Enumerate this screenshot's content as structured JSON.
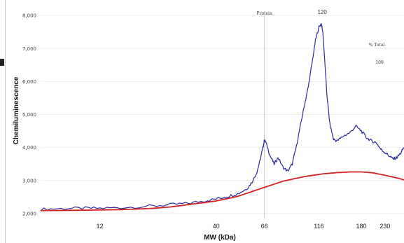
{
  "chart_data": {
    "type": "line",
    "xlabel": "MW (kDa)",
    "ylabel": "Chemiluminescence",
    "x_scale": "log",
    "xlim": [
      6.5,
      280
    ],
    "ylim": [
      1850,
      8300
    ],
    "x_ticks": [
      "12",
      "40",
      "66",
      "116",
      "180",
      "230"
    ],
    "x_tick_values": [
      12,
      40,
      66,
      116,
      180,
      230
    ],
    "y_ticks": [
      "2,000",
      "3,000",
      "4,000",
      "5,000",
      "6,000",
      "7,000",
      "8,000"
    ],
    "y_tick_values": [
      2000,
      3000,
      4000,
      5000,
      6000,
      7000,
      8000
    ],
    "annotations": [
      {
        "text": "Protein",
        "x": 66,
        "kind": "vline"
      },
      {
        "text": "120",
        "x": 120,
        "kind": "peak"
      },
      {
        "text": "% Total",
        "kind": "note"
      },
      {
        "text": "100",
        "kind": "note"
      }
    ],
    "series": [
      {
        "color": "#2a2aa0",
        "x": [
          6.5,
          8,
          10,
          12,
          15,
          20,
          25,
          30,
          35,
          40,
          45,
          50,
          55,
          58,
          61,
          63,
          65,
          66,
          67,
          70,
          73,
          76,
          80,
          84,
          88,
          92,
          96,
          100,
          104,
          108,
          112,
          116,
          119,
          121,
          123,
          126,
          130,
          135,
          140,
          150,
          160,
          170,
          180,
          190,
          200,
          210,
          220,
          230,
          240,
          250,
          260,
          270,
          280
        ],
        "y": [
          2130,
          2150,
          2160,
          2160,
          2180,
          2220,
          2270,
          2310,
          2380,
          2440,
          2520,
          2600,
          2750,
          2950,
          3250,
          3600,
          4000,
          4230,
          4150,
          3750,
          3500,
          3700,
          3400,
          3280,
          3500,
          4050,
          4700,
          5300,
          5850,
          6550,
          7250,
          7650,
          7750,
          7450,
          6700,
          5600,
          4700,
          4250,
          4200,
          4350,
          4450,
          4650,
          4500,
          4300,
          4200,
          4150,
          3950,
          3850,
          3750,
          3650,
          3700,
          3820,
          4000
        ]
      },
      {
        "color": "#d42020",
        "x": [
          6.5,
          10,
          15,
          20,
          25,
          30,
          40,
          50,
          60,
          70,
          80,
          100,
          120,
          140,
          160,
          180,
          200,
          230,
          260,
          280
        ],
        "y": [
          2090,
          2100,
          2120,
          2150,
          2200,
          2270,
          2380,
          2520,
          2700,
          2850,
          2980,
          3120,
          3200,
          3240,
          3260,
          3260,
          3240,
          3160,
          3080,
          3020
        ]
      }
    ]
  }
}
